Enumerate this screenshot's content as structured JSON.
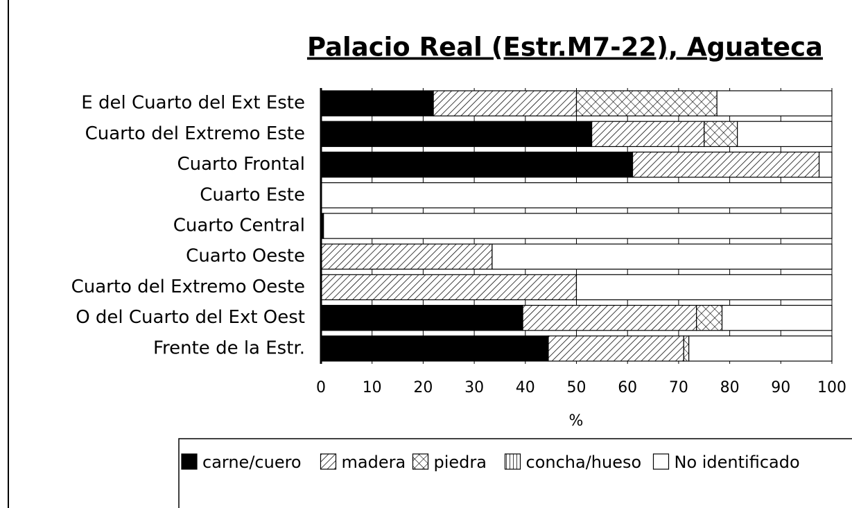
{
  "chart_data": {
    "type": "stacked-barh",
    "title": "Palacio Real (Estr.M7-22), Aguateca",
    "x_label": "%",
    "categories": [
      "E del Cuarto del Ext Este",
      "Cuarto del Extremo Este",
      "Cuarto Frontal",
      "Cuarto Este",
      "Cuarto Central",
      "Cuarto Oeste",
      "Cuarto del Extremo Oeste",
      "O del Cuarto del Ext Oest",
      "Frente de la Estr."
    ],
    "series": [
      {
        "name": "carne/cuero",
        "color": "#000000",
        "pattern": "solid",
        "values": [
          22,
          53,
          61,
          0,
          0.5,
          0,
          0,
          39.5,
          44.5
        ]
      },
      {
        "name": "madera",
        "color": "#000000",
        "pattern": "diagonal",
        "values": [
          28,
          22,
          36.5,
          0,
          0,
          33.5,
          50,
          34,
          26.5
        ]
      },
      {
        "name": "piedra",
        "color": "#000000",
        "pattern": "cross",
        "values": [
          27.5,
          6.5,
          0,
          0,
          0,
          0,
          0,
          5,
          1
        ]
      },
      {
        "name": "concha/hueso",
        "color": "#000000",
        "pattern": "vertical",
        "values": [
          0,
          0,
          0,
          0,
          0,
          0,
          0,
          0,
          0
        ]
      },
      {
        "name": "No identificado",
        "color": "#000000",
        "pattern": "none",
        "values": [
          22.5,
          18.5,
          2.5,
          100,
          99.5,
          66.5,
          50,
          21.5,
          28
        ]
      }
    ],
    "xlim": [
      0,
      100
    ],
    "xticks": [
      0,
      10,
      20,
      30,
      40,
      50,
      60,
      70,
      80,
      90,
      100
    ],
    "grid": true
  }
}
